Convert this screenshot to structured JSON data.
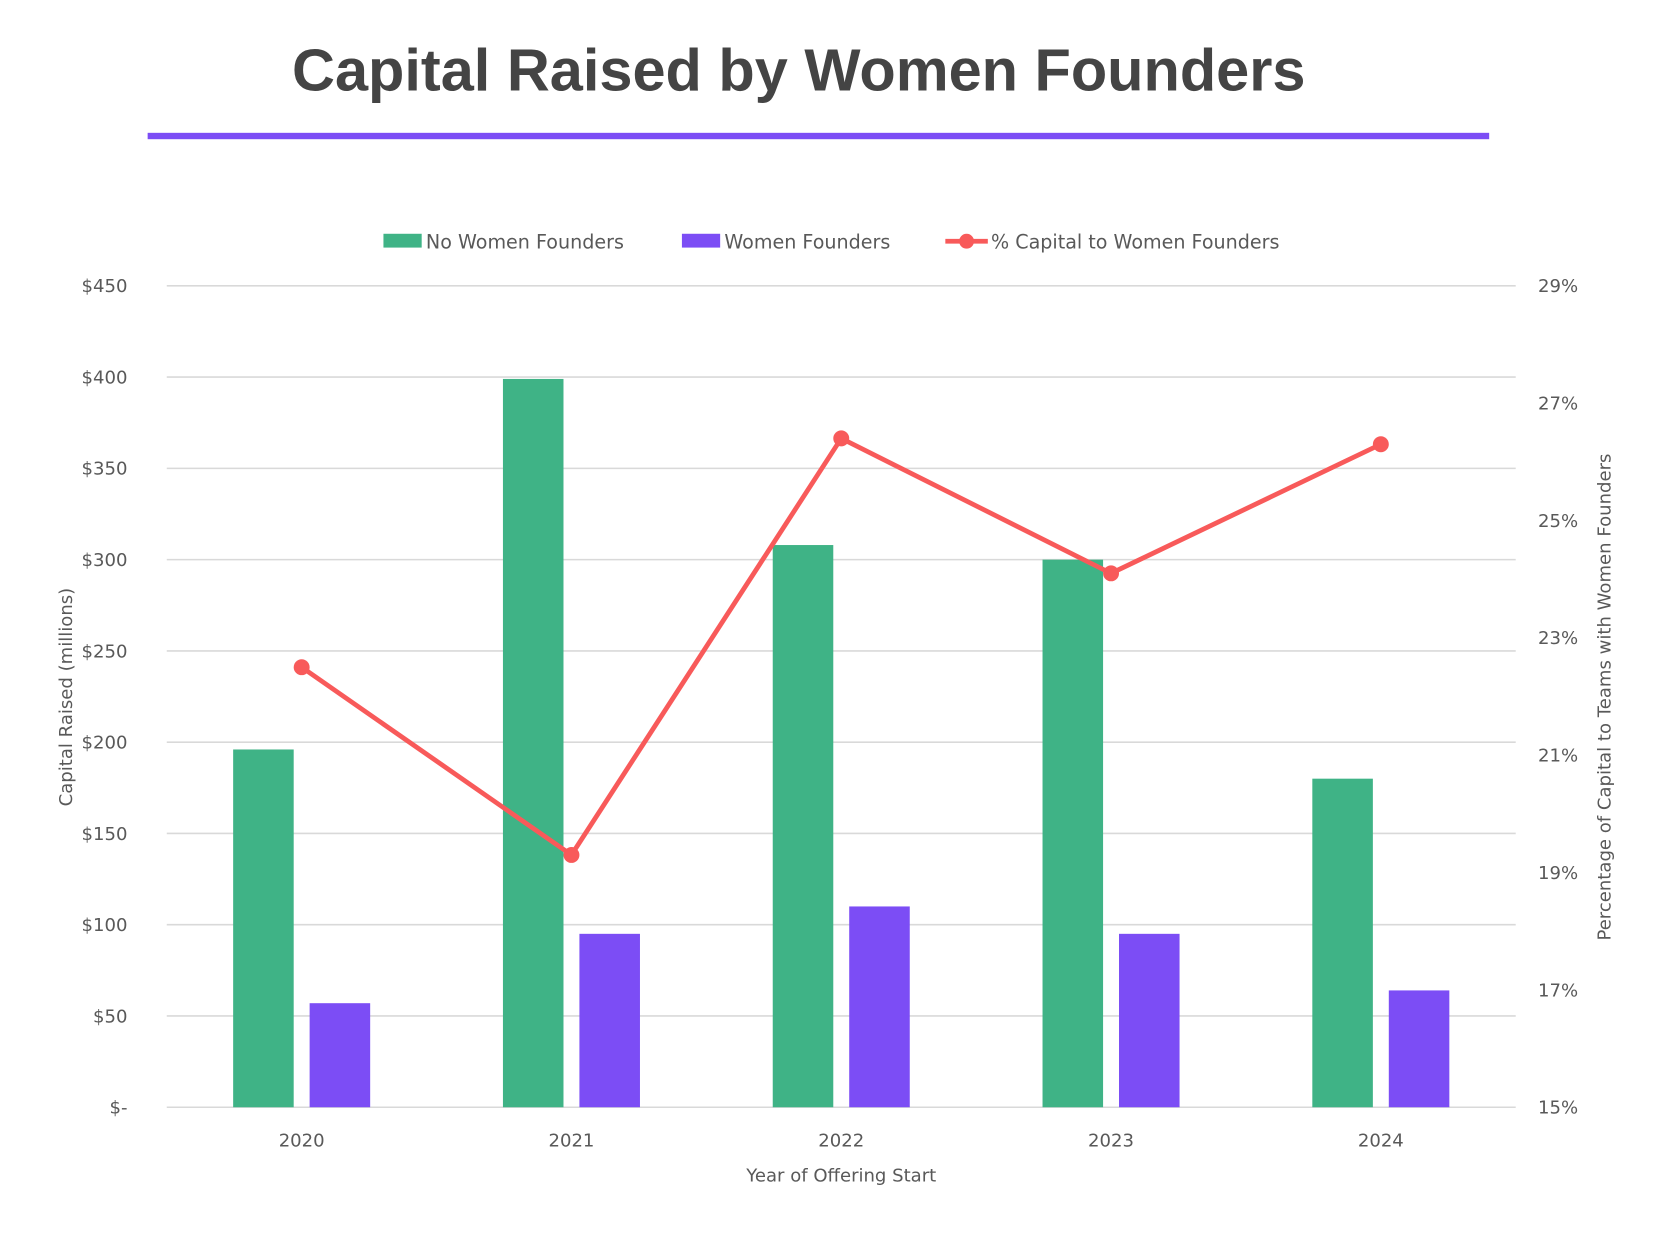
{
  "chart_data": {
    "type": "bar",
    "title": "Capital Raised by Women Founders",
    "xlabel": "Year of Offering Start",
    "ylabel": "Capital Raised (millions)",
    "y2label": "Percentage of Capital to Teams with Women Founders",
    "categories": [
      "2020",
      "2021",
      "2022",
      "2023",
      "2024"
    ],
    "ylim": [
      0,
      450
    ],
    "y2lim": [
      15,
      29
    ],
    "yticks": [
      0,
      50,
      100,
      150,
      200,
      250,
      300,
      350,
      400,
      450
    ],
    "ytick_labels": [
      "$-",
      "$50",
      "$100",
      "$150",
      "$200",
      "$250",
      "$300",
      "$350",
      "$400",
      "$450"
    ],
    "y2ticks": [
      15,
      17,
      19,
      21,
      23,
      25,
      27,
      29
    ],
    "y2tick_labels": [
      "15%",
      "17%",
      "19%",
      "21%",
      "23%",
      "25%",
      "27%",
      "29%"
    ],
    "grid": true,
    "legend_position": "top",
    "series": [
      {
        "name": "No Women Founders",
        "type": "bar",
        "axis": "left",
        "color": "#3fb386",
        "values": [
          196,
          399,
          308,
          300,
          180
        ]
      },
      {
        "name": "Women Founders",
        "type": "bar",
        "axis": "left",
        "color": "#7c4df5",
        "values": [
          57,
          95,
          110,
          95,
          64
        ]
      },
      {
        "name": "% Capital to Women Founders",
        "type": "line",
        "axis": "right",
        "color": "#f85a5a",
        "values": [
          22.5,
          19.3,
          26.4,
          24.1,
          26.3
        ]
      }
    ],
    "title_underline_color": "#7c4df5"
  }
}
